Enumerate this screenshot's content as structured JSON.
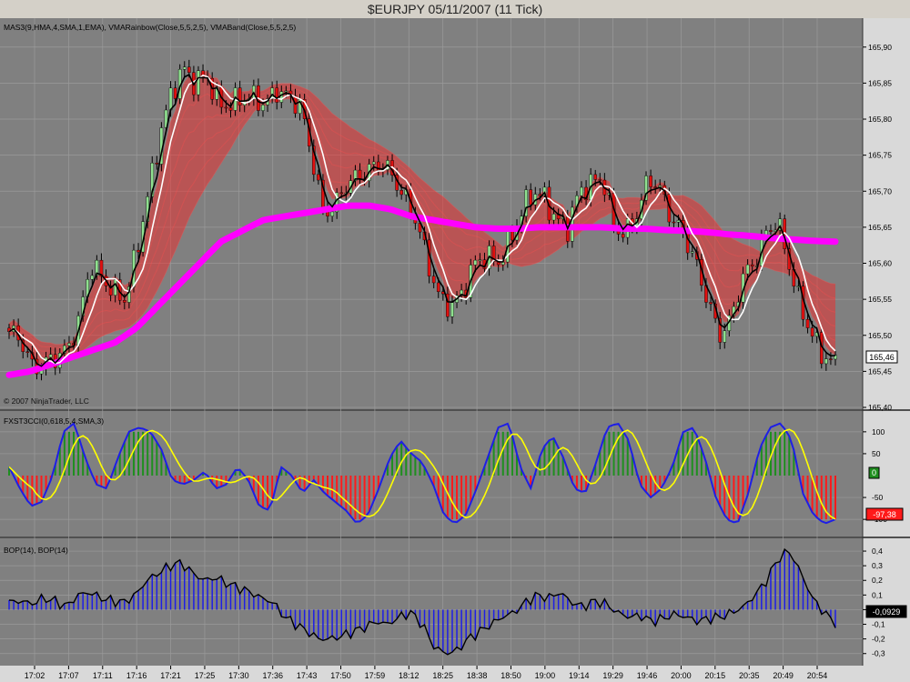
{
  "window": {
    "title": "$EURJPY  05/11/2007  (11 Tick)"
  },
  "colors": {
    "panel_bg": "#808080",
    "axis_bg": "#d9d9d9",
    "up_candle": "#8fe08f",
    "down_candle": "#e01010",
    "hma_line": "#000000",
    "sma_line": "#ffffff",
    "rainbow": "#ff2020",
    "vmaband": "#ff00ff",
    "cci_up": "#1f8f1f",
    "cci_down": "#ff1a1a",
    "cci_line": "#1e1ee6",
    "cci_signal": "#ffff00",
    "bop_bars": "#1e1ee6",
    "bop_line": "#000000"
  },
  "panels": {
    "price": {
      "label": "MAS3(9,HMA,4,SMA,1,EMA), VMARainbow(Close,5,5,2,5), VMABand(Close,5,5,2,5)",
      "copyright": "© 2007 NinjaTrader, LLC",
      "y_ticks": [
        "165,90",
        "165,85",
        "165,80",
        "165,75",
        "165,70",
        "165,65",
        "165,60",
        "165,55",
        "165,50",
        "165,45",
        "165,40"
      ],
      "last_price": "165,46",
      "ylim": [
        165.4,
        165.93
      ]
    },
    "cci": {
      "label": "FXST3CCI(0,618,5,4,SMA,3)",
      "y_ticks": [
        "100",
        "50",
        "-50",
        "-100"
      ],
      "zero_badge": "0",
      "last_value": "-97,38",
      "ylim": [
        -135,
        135
      ]
    },
    "bop": {
      "label": "BOP(14), BOP(14)",
      "y_ticks": [
        "0,4",
        "0,3",
        "0,2",
        "0,1",
        "0",
        "-0,1",
        "-0,2",
        "-0,3"
      ],
      "last_value": "-0,0929",
      "ylim": [
        -0.37,
        0.45
      ]
    }
  },
  "time_axis": [
    "17:02",
    "17:07",
    "17:11",
    "17:16",
    "17:21",
    "17:25",
    "17:30",
    "17:36",
    "17:43",
    "17:50",
    "17:59",
    "18:12",
    "18:25",
    "18:38",
    "18:50",
    "19:00",
    "19:14",
    "19:29",
    "19:46",
    "20:00",
    "20:15",
    "20:35",
    "20:49",
    "20:54"
  ],
  "chart_data": [
    {
      "type": "candlestick",
      "title": "$EURJPY  05/11/2007  (11 Tick)",
      "series_label": "MAS3(9,HMA,4,SMA,1,EMA), VMARainbow(Close,5,5,2,5), VMABand(Close,5,5,2,5)",
      "ylim": [
        165.4,
        165.93
      ],
      "close_waypoints": [
        165.505,
        165.495,
        165.455,
        165.46,
        165.47,
        165.48,
        165.52,
        165.6,
        165.58,
        165.56,
        165.55,
        165.62,
        165.7,
        165.78,
        165.84,
        165.87,
        165.85,
        165.86,
        165.82,
        165.82,
        165.83,
        165.83,
        165.82,
        165.84,
        165.83,
        165.82,
        165.75,
        165.67,
        165.68,
        165.71,
        165.72,
        165.73,
        165.74,
        165.72,
        165.69,
        165.66,
        165.6,
        165.55,
        165.54,
        165.56,
        165.6,
        165.61,
        165.6,
        165.63,
        165.67,
        165.7,
        165.69,
        165.66,
        165.65,
        165.7,
        165.71,
        165.72,
        165.65,
        165.64,
        165.67,
        165.72,
        165.7,
        165.66,
        165.64,
        165.6,
        165.55,
        165.5,
        165.52,
        165.58,
        165.6,
        165.64,
        165.66,
        165.6,
        165.54,
        165.5,
        165.47,
        165.46
      ],
      "vmaband_waypoints": [
        165.445,
        165.45,
        165.46,
        165.47,
        165.48,
        165.49,
        165.51,
        165.54,
        165.57,
        165.6,
        165.63,
        165.645,
        165.66,
        165.665,
        165.67,
        165.675,
        165.68,
        165.68,
        165.675,
        165.665,
        165.66,
        165.655,
        165.65,
        165.648,
        165.648,
        165.65,
        165.65,
        165.65,
        165.65,
        165.648,
        165.648,
        165.646,
        165.645,
        165.643,
        165.64,
        165.638,
        165.635,
        165.633,
        165.631,
        165.63
      ]
    },
    {
      "type": "line",
      "series_label": "FXST3CCI(0,618,5,4,SMA,3)",
      "ylim": [
        -135,
        135
      ],
      "waypoints": [
        20,
        -30,
        -70,
        -60,
        0,
        100,
        120,
        40,
        -20,
        -30,
        40,
        100,
        110,
        100,
        60,
        -10,
        -20,
        -10,
        10,
        -30,
        -20,
        20,
        -10,
        -70,
        -80,
        20,
        0,
        -40,
        -10,
        -40,
        -60,
        -80,
        -110,
        -90,
        -30,
        40,
        80,
        50,
        30,
        -20,
        -90,
        -110,
        -90,
        -30,
        40,
        110,
        120,
        20,
        -30,
        60,
        90,
        40,
        -30,
        -40,
        30,
        110,
        120,
        80,
        -20,
        -50,
        -30,
        20,
        100,
        110,
        40,
        -50,
        -100,
        -110,
        -40,
        60,
        110,
        120,
        80,
        -40,
        -90,
        -110,
        -100
      ]
    },
    {
      "type": "bar",
      "series_label": "BOP(14), BOP(14)",
      "ylim": [
        -0.37,
        0.45
      ],
      "waypoints": [
        0.05,
        0.06,
        0.04,
        0.08,
        0.06,
        0.02,
        0.1,
        0.12,
        0.08,
        0.06,
        0.05,
        0.1,
        0.2,
        0.25,
        0.3,
        0.32,
        0.25,
        0.2,
        0.22,
        0.18,
        0.15,
        0.12,
        0.08,
        0.05,
        -0.05,
        -0.1,
        -0.15,
        -0.2,
        -0.2,
        -0.18,
        -0.15,
        -0.12,
        -0.08,
        -0.1,
        -0.05,
        -0.02,
        -0.1,
        -0.25,
        -0.3,
        -0.28,
        -0.2,
        -0.15,
        -0.1,
        -0.05,
        -0.02,
        0.05,
        0.1,
        0.08,
        0.12,
        0.05,
        0.02,
        0.06,
        0.04,
        -0.02,
        -0.05,
        -0.04,
        -0.08,
        -0.06,
        -0.03,
        -0.05,
        -0.08,
        -0.06,
        -0.05,
        -0.02,
        0.02,
        0.1,
        0.2,
        0.35,
        0.4,
        0.25,
        0.08,
        -0.02,
        -0.09
      ]
    }
  ]
}
